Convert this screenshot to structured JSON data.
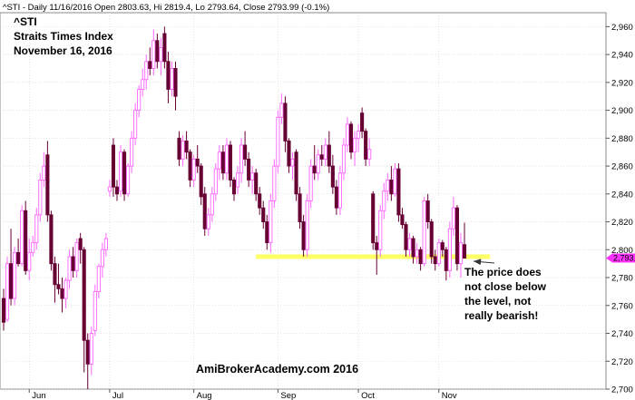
{
  "header": "^STI - Daily 11/16/2016 Open 2803.63, Hi 2819.4, Lo 2793.64, Close 2793.99 (-0.1%)",
  "title": "^STI",
  "subtitle": "Straits Times Index",
  "date_label": "November 16, 2016",
  "watermark": "AmiBrokerAcademy.com  2016",
  "annotation_lines": [
    "The price does",
    "not close below",
    "the level, not",
    "really bearish!"
  ],
  "last_price_label": "2,793.99",
  "colors": {
    "bull": "#ff66ff",
    "bear": "#660033",
    "support": "#ffff66",
    "grid": "#d0d0d0",
    "price_tag": "#ff33ff"
  },
  "chart_data": {
    "type": "candlestick",
    "ylim": [
      2700,
      2970
    ],
    "y_ticks": [
      2700,
      2720,
      2740,
      2760,
      2780,
      2800,
      2820,
      2840,
      2860,
      2880,
      2900,
      2920,
      2940,
      2960
    ],
    "y_tick_labels": [
      "2,700",
      "2,720",
      "2,740",
      "2,760",
      "2,780",
      "2,800",
      "2,820",
      "2,840",
      "2,860",
      "2,880",
      "2,900",
      "2,920",
      "2,940",
      "2,960"
    ],
    "month_labels": [
      "Jun",
      "Jul",
      "Aug",
      "Sep",
      "Oct",
      "Nov"
    ],
    "month_start_index": [
      7,
      29,
      52,
      75,
      97,
      119
    ],
    "support_level": 2795,
    "support_start_index": 69,
    "support_end_index": 133,
    "annotation_target_index": 128,
    "series": [
      {
        "o": 2765,
        "h": 2772,
        "l": 2742,
        "c": 2748
      },
      {
        "o": 2750,
        "h": 2795,
        "l": 2748,
        "c": 2790
      },
      {
        "o": 2790,
        "h": 2815,
        "l": 2760,
        "c": 2765
      },
      {
        "o": 2765,
        "h": 2802,
        "l": 2760,
        "c": 2798
      },
      {
        "o": 2798,
        "h": 2808,
        "l": 2788,
        "c": 2790
      },
      {
        "o": 2790,
        "h": 2832,
        "l": 2788,
        "c": 2828
      },
      {
        "o": 2828,
        "h": 2835,
        "l": 2782,
        "c": 2785
      },
      {
        "o": 2785,
        "h": 2808,
        "l": 2778,
        "c": 2798
      },
      {
        "o": 2798,
        "h": 2810,
        "l": 2795,
        "c": 2805
      },
      {
        "o": 2805,
        "h": 2830,
        "l": 2800,
        "c": 2825
      },
      {
        "o": 2825,
        "h": 2855,
        "l": 2820,
        "c": 2850
      },
      {
        "o": 2850,
        "h": 2870,
        "l": 2845,
        "c": 2860
      },
      {
        "o": 2868,
        "h": 2878,
        "l": 2820,
        "c": 2825
      },
      {
        "o": 2825,
        "h": 2828,
        "l": 2785,
        "c": 2790
      },
      {
        "o": 2790,
        "h": 2795,
        "l": 2762,
        "c": 2775
      },
      {
        "o": 2775,
        "h": 2790,
        "l": 2768,
        "c": 2772
      },
      {
        "o": 2772,
        "h": 2780,
        "l": 2755,
        "c": 2765
      },
      {
        "o": 2765,
        "h": 2780,
        "l": 2758,
        "c": 2778
      },
      {
        "o": 2778,
        "h": 2800,
        "l": 2772,
        "c": 2795
      },
      {
        "o": 2795,
        "h": 2802,
        "l": 2780,
        "c": 2785
      },
      {
        "o": 2785,
        "h": 2808,
        "l": 2780,
        "c": 2805
      },
      {
        "o": 2808,
        "h": 2812,
        "l": 2790,
        "c": 2800
      },
      {
        "o": 2800,
        "h": 2802,
        "l": 2712,
        "c": 2735
      },
      {
        "o": 2735,
        "h": 2740,
        "l": 2700,
        "c": 2718
      },
      {
        "o": 2718,
        "h": 2745,
        "l": 2710,
        "c": 2740
      },
      {
        "o": 2742,
        "h": 2775,
        "l": 2738,
        "c": 2770
      },
      {
        "o": 2770,
        "h": 2790,
        "l": 2765,
        "c": 2788
      },
      {
        "o": 2788,
        "h": 2805,
        "l": 2780,
        "c": 2800
      },
      {
        "o": 2800,
        "h": 2812,
        "l": 2795,
        "c": 2808
      },
      {
        "o": 2842,
        "h": 2850,
        "l": 2838,
        "c": 2845
      },
      {
        "o": 2875,
        "h": 2880,
        "l": 2838,
        "c": 2845
      },
      {
        "o": 2845,
        "h": 2850,
        "l": 2835,
        "c": 2840
      },
      {
        "o": 2842,
        "h": 2875,
        "l": 2838,
        "c": 2870
      },
      {
        "o": 2870,
        "h": 2872,
        "l": 2835,
        "c": 2840
      },
      {
        "o": 2840,
        "h": 2862,
        "l": 2838,
        "c": 2860
      },
      {
        "o": 2860,
        "h": 2885,
        "l": 2855,
        "c": 2880
      },
      {
        "o": 2880,
        "h": 2905,
        "l": 2875,
        "c": 2900
      },
      {
        "o": 2900,
        "h": 2918,
        "l": 2895,
        "c": 2915
      },
      {
        "o": 2915,
        "h": 2930,
        "l": 2910,
        "c": 2922
      },
      {
        "o": 2922,
        "h": 2940,
        "l": 2915,
        "c": 2935
      },
      {
        "o": 2935,
        "h": 2945,
        "l": 2925,
        "c": 2930
      },
      {
        "o": 2930,
        "h": 2958,
        "l": 2925,
        "c": 2950
      },
      {
        "o": 2950,
        "h": 2955,
        "l": 2930,
        "c": 2935
      },
      {
        "o": 2935,
        "h": 2952,
        "l": 2925,
        "c": 2945
      },
      {
        "o": 2955,
        "h": 2960,
        "l": 2930,
        "c": 2935
      },
      {
        "o": 2935,
        "h": 2942,
        "l": 2905,
        "c": 2915
      },
      {
        "o": 2915,
        "h": 2935,
        "l": 2910,
        "c": 2930
      },
      {
        "o": 2930,
        "h": 2935,
        "l": 2900,
        "c": 2910
      },
      {
        "o": 2880,
        "h": 2885,
        "l": 2860,
        "c": 2865
      },
      {
        "o": 2865,
        "h": 2882,
        "l": 2860,
        "c": 2878
      },
      {
        "o": 2878,
        "h": 2885,
        "l": 2865,
        "c": 2870
      },
      {
        "o": 2870,
        "h": 2872,
        "l": 2845,
        "c": 2850
      },
      {
        "o": 2850,
        "h": 2868,
        "l": 2845,
        "c": 2865
      },
      {
        "o": 2865,
        "h": 2875,
        "l": 2855,
        "c": 2860
      },
      {
        "o": 2860,
        "h": 2862,
        "l": 2832,
        "c": 2838
      },
      {
        "o": 2840,
        "h": 2845,
        "l": 2810,
        "c": 2815
      },
      {
        "o": 2815,
        "h": 2830,
        "l": 2810,
        "c": 2825
      },
      {
        "o": 2825,
        "h": 2845,
        "l": 2820,
        "c": 2840
      },
      {
        "o": 2840,
        "h": 2862,
        "l": 2835,
        "c": 2858
      },
      {
        "o": 2858,
        "h": 2875,
        "l": 2850,
        "c": 2870
      },
      {
        "o": 2870,
        "h": 2875,
        "l": 2850,
        "c": 2855
      },
      {
        "o": 2855,
        "h": 2880,
        "l": 2850,
        "c": 2875
      },
      {
        "o": 2875,
        "h": 2878,
        "l": 2845,
        "c": 2850
      },
      {
        "o": 2850,
        "h": 2852,
        "l": 2835,
        "c": 2840
      },
      {
        "o": 2845,
        "h": 2860,
        "l": 2840,
        "c": 2855
      },
      {
        "o": 2855,
        "h": 2880,
        "l": 2848,
        "c": 2875
      },
      {
        "o": 2875,
        "h": 2885,
        "l": 2860,
        "c": 2865
      },
      {
        "o": 2865,
        "h": 2870,
        "l": 2845,
        "c": 2850
      },
      {
        "o": 2850,
        "h": 2860,
        "l": 2840,
        "c": 2855
      },
      {
        "o": 2855,
        "h": 2858,
        "l": 2835,
        "c": 2840
      },
      {
        "o": 2840,
        "h": 2845,
        "l": 2825,
        "c": 2830
      },
      {
        "o": 2830,
        "h": 2835,
        "l": 2815,
        "c": 2820
      },
      {
        "o": 2820,
        "h": 2825,
        "l": 2800,
        "c": 2805
      },
      {
        "o": 2805,
        "h": 2840,
        "l": 2798,
        "c": 2835
      },
      {
        "o": 2835,
        "h": 2865,
        "l": 2830,
        "c": 2860
      },
      {
        "o": 2860,
        "h": 2900,
        "l": 2855,
        "c": 2895
      },
      {
        "o": 2895,
        "h": 2912,
        "l": 2890,
        "c": 2905
      },
      {
        "o": 2905,
        "h": 2910,
        "l": 2870,
        "c": 2878
      },
      {
        "o": 2878,
        "h": 2880,
        "l": 2855,
        "c": 2860
      },
      {
        "o": 2860,
        "h": 2870,
        "l": 2850,
        "c": 2865
      },
      {
        "o": 2870,
        "h": 2872,
        "l": 2835,
        "c": 2840
      },
      {
        "o": 2840,
        "h": 2845,
        "l": 2815,
        "c": 2820
      },
      {
        "o": 2820,
        "h": 2825,
        "l": 2795,
        "c": 2800
      },
      {
        "o": 2800,
        "h": 2840,
        "l": 2795,
        "c": 2835
      },
      {
        "o": 2835,
        "h": 2865,
        "l": 2830,
        "c": 2860
      },
      {
        "o": 2860,
        "h": 2875,
        "l": 2850,
        "c": 2855
      },
      {
        "o": 2855,
        "h": 2872,
        "l": 2850,
        "c": 2868
      },
      {
        "o": 2868,
        "h": 2875,
        "l": 2860,
        "c": 2865
      },
      {
        "o": 2865,
        "h": 2880,
        "l": 2860,
        "c": 2875
      },
      {
        "o": 2875,
        "h": 2885,
        "l": 2855,
        "c": 2860
      },
      {
        "o": 2860,
        "h": 2868,
        "l": 2840,
        "c": 2845
      },
      {
        "o": 2845,
        "h": 2850,
        "l": 2825,
        "c": 2830
      },
      {
        "o": 2830,
        "h": 2860,
        "l": 2825,
        "c": 2855
      },
      {
        "o": 2855,
        "h": 2880,
        "l": 2850,
        "c": 2875
      },
      {
        "o": 2875,
        "h": 2895,
        "l": 2870,
        "c": 2890
      },
      {
        "o": 2890,
        "h": 2892,
        "l": 2865,
        "c": 2870
      },
      {
        "o": 2870,
        "h": 2885,
        "l": 2860,
        "c": 2880
      },
      {
        "o": 2880,
        "h": 2890,
        "l": 2870,
        "c": 2885
      },
      {
        "o": 2898,
        "h": 2902,
        "l": 2880,
        "c": 2885
      },
      {
        "o": 2885,
        "h": 2887,
        "l": 2860,
        "c": 2865
      },
      {
        "o": 2865,
        "h": 2880,
        "l": 2860,
        "c": 2872
      },
      {
        "o": 2840,
        "h": 2842,
        "l": 2800,
        "c": 2805
      },
      {
        "o": 2805,
        "h": 2810,
        "l": 2782,
        "c": 2800
      },
      {
        "o": 2800,
        "h": 2832,
        "l": 2795,
        "c": 2828
      },
      {
        "o": 2828,
        "h": 2848,
        "l": 2822,
        "c": 2842
      },
      {
        "o": 2842,
        "h": 2855,
        "l": 2835,
        "c": 2850
      },
      {
        "o": 2850,
        "h": 2860,
        "l": 2835,
        "c": 2840
      },
      {
        "o": 2840,
        "h": 2862,
        "l": 2838,
        "c": 2858
      },
      {
        "o": 2858,
        "h": 2862,
        "l": 2820,
        "c": 2825
      },
      {
        "o": 2825,
        "h": 2830,
        "l": 2815,
        "c": 2818
      },
      {
        "o": 2818,
        "h": 2820,
        "l": 2795,
        "c": 2800
      },
      {
        "o": 2800,
        "h": 2812,
        "l": 2795,
        "c": 2808
      },
      {
        "o": 2808,
        "h": 2810,
        "l": 2790,
        "c": 2795
      },
      {
        "o": 2795,
        "h": 2805,
        "l": 2790,
        "c": 2800
      },
      {
        "o": 2800,
        "h": 2802,
        "l": 2785,
        "c": 2790
      },
      {
        "o": 2790,
        "h": 2838,
        "l": 2788,
        "c": 2835
      },
      {
        "o": 2835,
        "h": 2840,
        "l": 2815,
        "c": 2820
      },
      {
        "o": 2820,
        "h": 2822,
        "l": 2790,
        "c": 2795
      },
      {
        "o": 2795,
        "h": 2800,
        "l": 2785,
        "c": 2790
      },
      {
        "o": 2790,
        "h": 2808,
        "l": 2788,
        "c": 2805
      },
      {
        "o": 2805,
        "h": 2807,
        "l": 2795,
        "c": 2800
      },
      {
        "o": 2800,
        "h": 2802,
        "l": 2778,
        "c": 2785
      },
      {
        "o": 2785,
        "h": 2820,
        "l": 2780,
        "c": 2815
      },
      {
        "o": 2815,
        "h": 2838,
        "l": 2810,
        "c": 2830
      },
      {
        "o": 2830,
        "h": 2832,
        "l": 2785,
        "c": 2790
      },
      {
        "o": 2790,
        "h": 2812,
        "l": 2780,
        "c": 2805
      },
      {
        "o": 2803.63,
        "h": 2819.4,
        "l": 2793.64,
        "c": 2793.99
      }
    ]
  }
}
